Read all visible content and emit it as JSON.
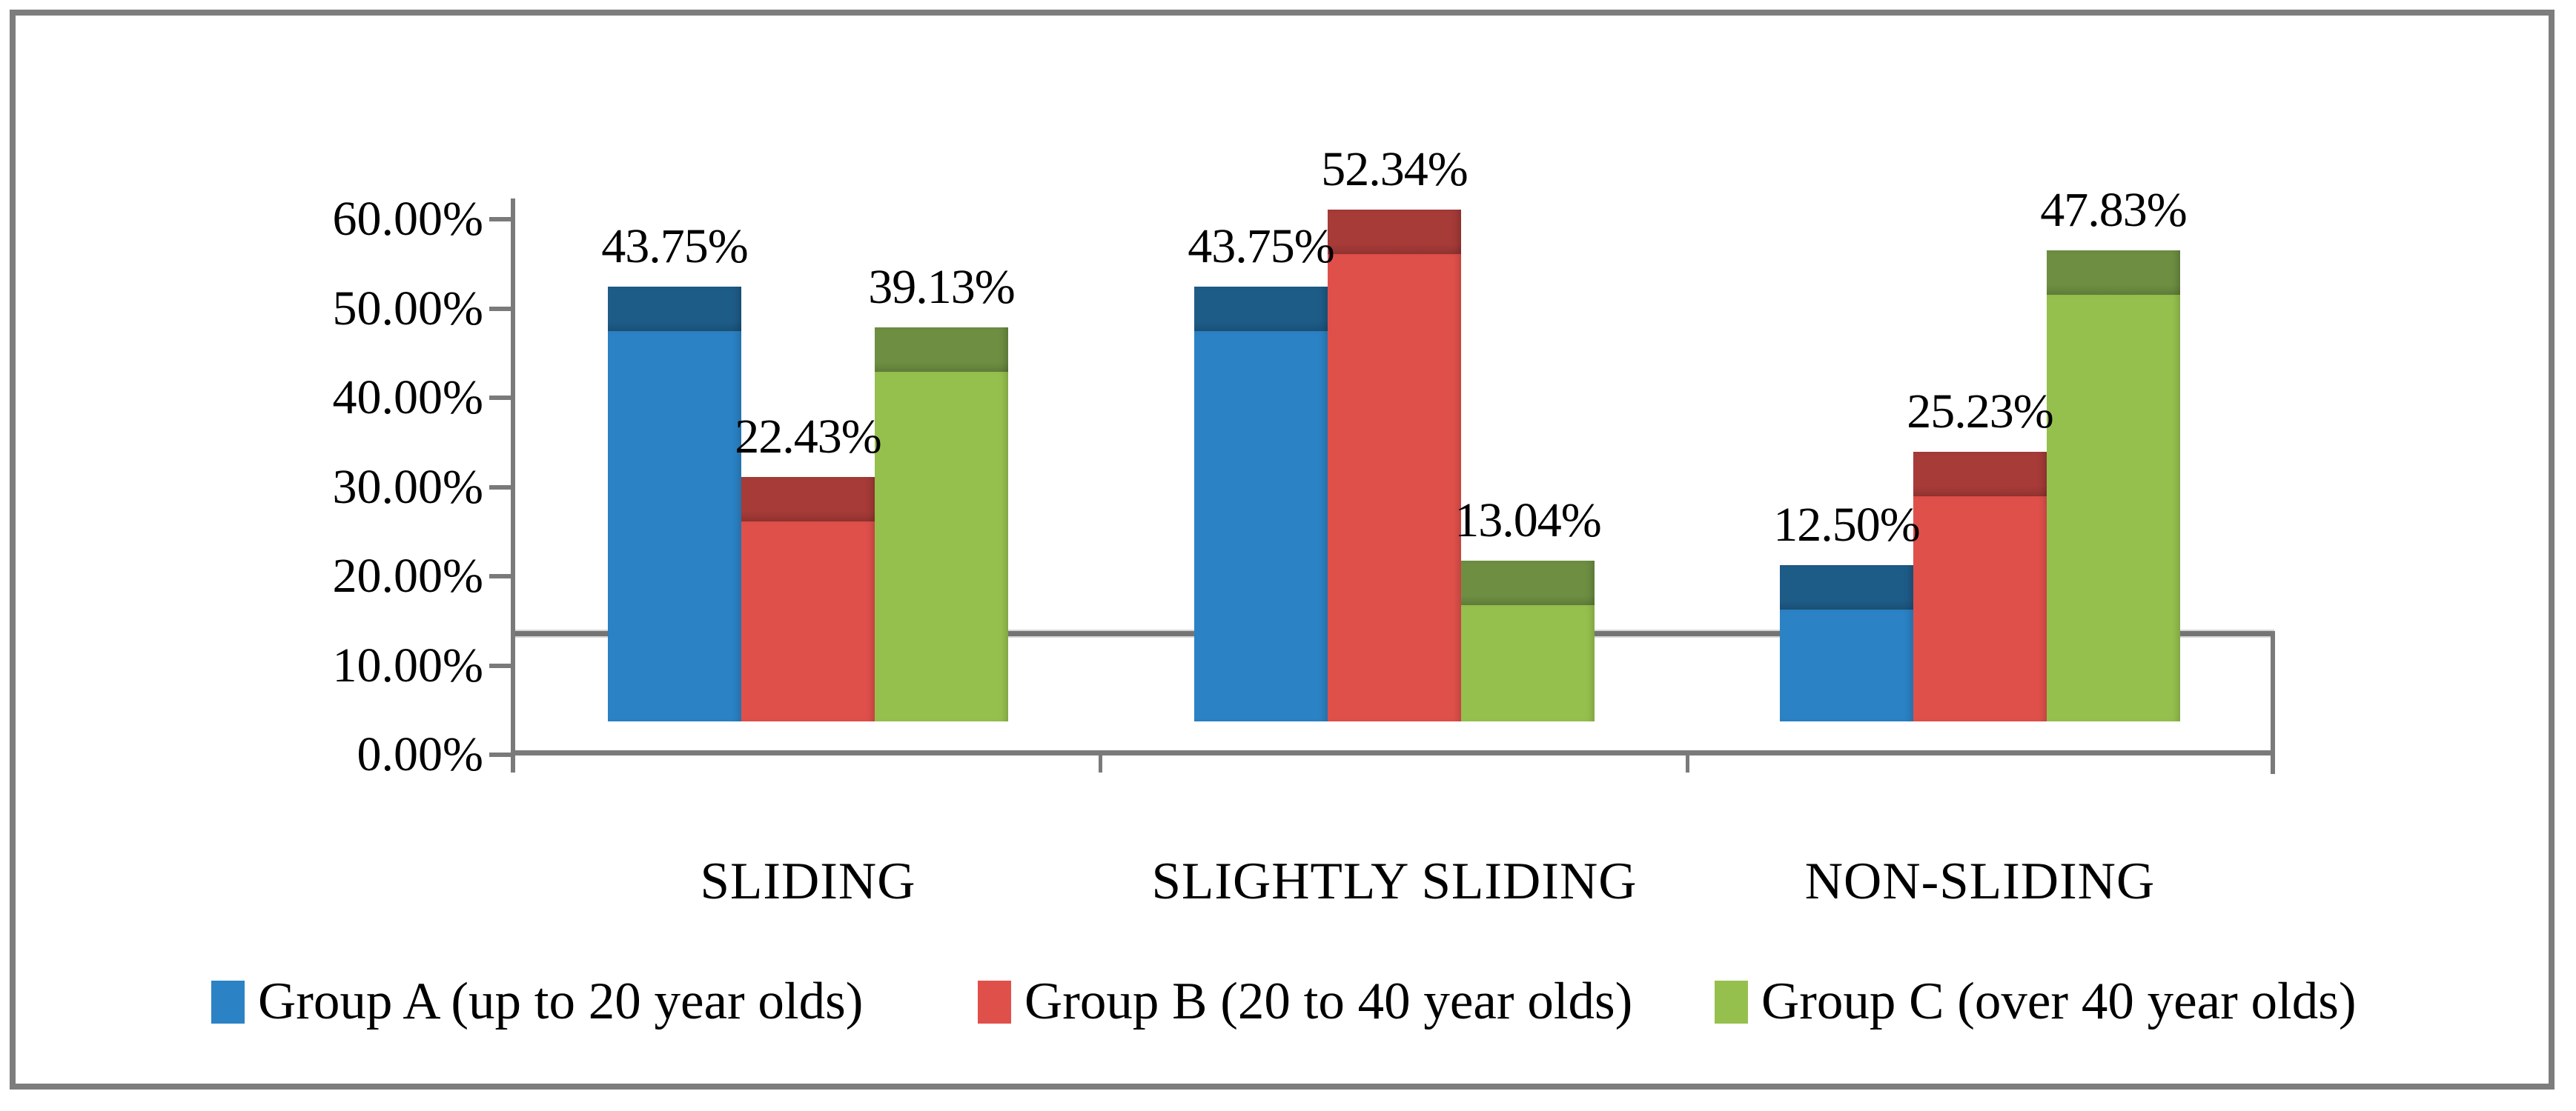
{
  "figure": {
    "background": "#ffffff",
    "border_color": "#7d7d7d",
    "axis_color": "#7a7a7a",
    "text_color": "#000000"
  },
  "chart_data": {
    "type": "bar",
    "title": "",
    "xlabel": "",
    "ylabel": "",
    "categories": [
      "SLIDING",
      "SLIGHTLY SLIDING",
      "NON-SLIDING"
    ],
    "series": [
      {
        "name": "Group A (up to 20 year olds)",
        "color": "#2b82c4",
        "cap_color": "#1e5c88",
        "values": [
          43.75,
          43.75,
          12.5
        ],
        "data_labels": [
          "43.75%",
          "43.75%",
          "12.50%"
        ]
      },
      {
        "name": "Group B (20 to 40 year olds)",
        "color": "#e0504b",
        "cap_color": "#a63b38",
        "values": [
          22.43,
          52.34,
          25.23
        ],
        "data_labels": [
          "22.43%",
          "52.34%",
          "25.23%"
        ]
      },
      {
        "name": "Group C (over 40 year olds)",
        "color": "#96c04e",
        "cap_color": "#6e8f42",
        "values": [
          39.13,
          13.04,
          47.83
        ],
        "data_labels": [
          "39.13%",
          "13.04%",
          "47.83%"
        ]
      }
    ],
    "y_axis": {
      "min": 0,
      "max": 60,
      "step": 10,
      "tick_labels": [
        "0.00%",
        "10.00%",
        "20.00%",
        "30.00%",
        "40.00%",
        "50.00%",
        "60.00%"
      ]
    },
    "legend_position": "bottom",
    "grid": false
  }
}
